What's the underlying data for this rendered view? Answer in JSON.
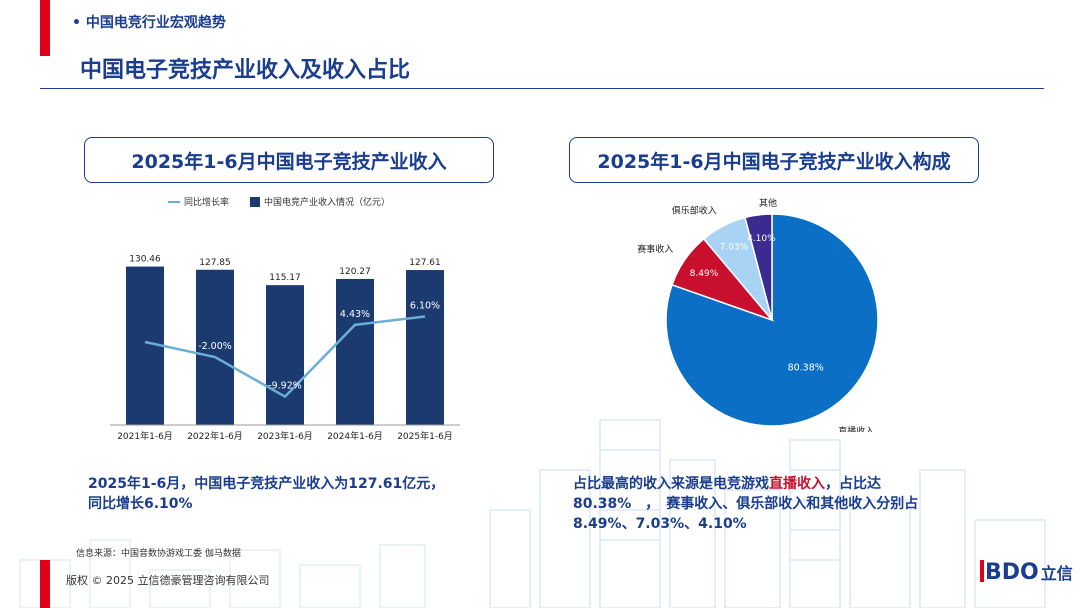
{
  "header": {
    "section": "中国电竞行业宏观趋势",
    "title": "中国电子竞技产业收入及收入占比"
  },
  "left_panel": {
    "title": "2025年1-6月中国电子竞技产业收入"
  },
  "right_panel": {
    "title": "2025年1-6月中国电子竞技产业收入构成"
  },
  "chart_data": [
    {
      "type": "bar",
      "categories": [
        "2021年1-6月",
        "2022年1-6月",
        "2023年1-6月",
        "2024年1-6月",
        "2025年1-6月"
      ],
      "series": [
        {
          "name": "中国电竞产业收入情况（亿元）",
          "type": "bar",
          "values": [
            130.46,
            127.85,
            115.17,
            120.27,
            127.61
          ],
          "labels": [
            "130.46",
            "127.85",
            "115.17",
            "120.27",
            "127.61"
          ]
        },
        {
          "name": "同比增长率",
          "type": "line",
          "values": [
            null,
            -2.0,
            -9.92,
            4.43,
            6.1
          ],
          "labels": [
            "",
            "-2.00%",
            "-9.92%",
            "4.43%",
            "6.10%"
          ]
        }
      ],
      "ylim": [
        0,
        140
      ],
      "grid": false,
      "legend": "top"
    },
    {
      "type": "pie",
      "slices": [
        {
          "name": "直播收入",
          "value": 80.38,
          "label": "80.38%",
          "color": "#0b6fc6"
        },
        {
          "name": "赛事收入",
          "value": 8.49,
          "label": "8.49%",
          "color": "#c8102e"
        },
        {
          "name": "俱乐部收入",
          "value": 7.03,
          "label": "7.03%",
          "color": "#a9d3f5"
        },
        {
          "name": "其他",
          "value": 4.1,
          "label": "4.10%",
          "color": "#3b2a8f"
        }
      ]
    }
  ],
  "summary_left": {
    "line1": "2025年1-6月，中国电子竞技产业收入为127.61亿元，",
    "line2": "同比增长6.10%"
  },
  "summary_right": {
    "pre": "占比最高的收入来源是电竞游戏",
    "highlight": "直播收入",
    "post": "，占比达",
    "line2": "80.38%　，　赛事收入、俱乐部收入和其他收入分别占",
    "line3": "8.49%、7.03%、4.10%"
  },
  "footer": {
    "source": "信息来源：中国音数协游戏工委 伽马数据",
    "copyright": "版权 © 2025 立信德豪管理咨询有限公司",
    "logo": "BDO",
    "logo_cn": "立信"
  },
  "colors": {
    "bar": "#1b3a6f",
    "line": "#6aaed6",
    "accent": "#1a3d8f",
    "red": "#e1001a"
  }
}
